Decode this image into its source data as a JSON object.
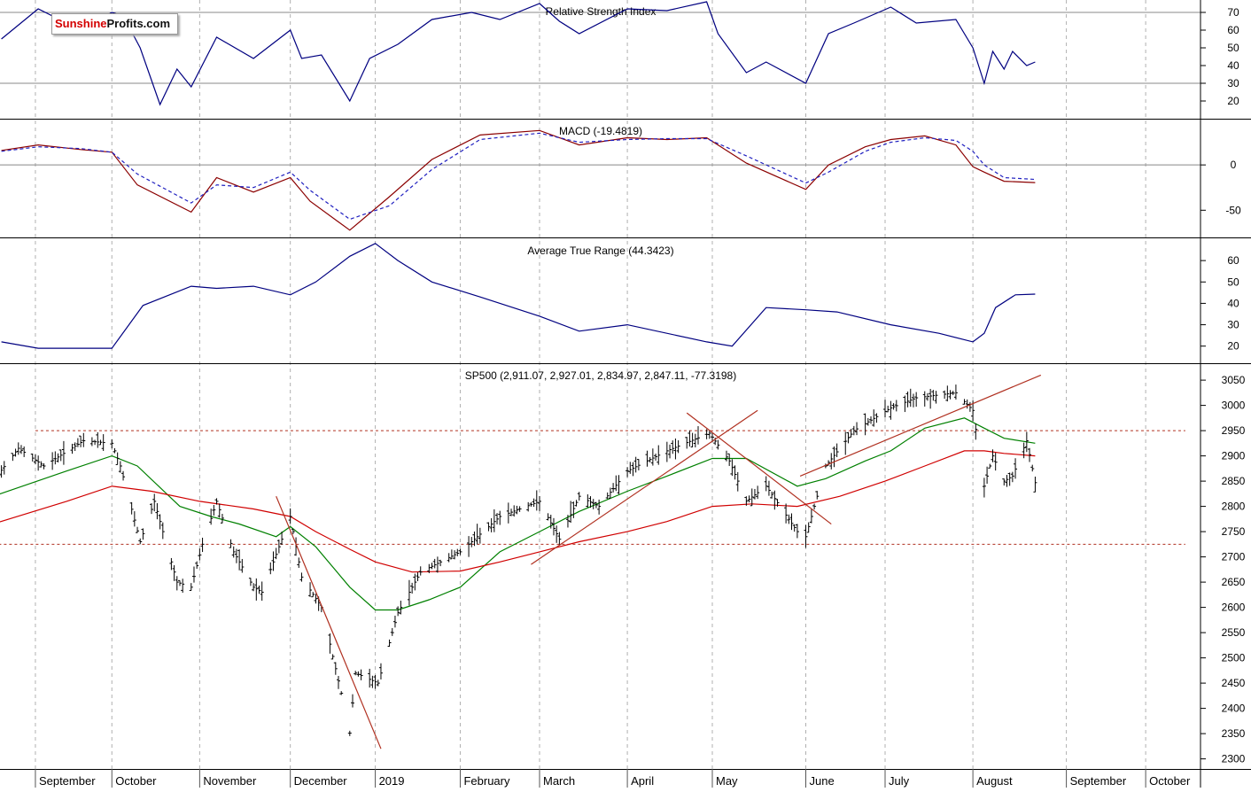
{
  "brand": {
    "part1": "Sunshine",
    "part2": "Profits.com"
  },
  "panels": {
    "rsi": {
      "title": "Relative Strength Index"
    },
    "macd": {
      "title": "MACD (-19.4819)"
    },
    "atr": {
      "title": "Average True Range (44.3423)"
    },
    "price": {
      "title": "SP500 (2,911.07, 2,927.01, 2,834.97, 2,847.11, -77.3198)"
    }
  },
  "chart_data": [
    {
      "type": "line",
      "name_ref": "rsi",
      "ylim": [
        10,
        77
      ],
      "y_ticks": [
        70,
        60,
        50,
        40,
        30,
        20
      ],
      "reference_lines": [
        70,
        30
      ],
      "x": [
        "2018-08-23",
        "2018-09-05",
        "2018-09-20",
        "2018-10-01",
        "2018-10-05",
        "2018-10-11",
        "2018-10-18",
        "2018-10-24",
        "2018-10-29",
        "2018-11-07",
        "2018-11-20",
        "2018-12-03",
        "2018-12-07",
        "2018-12-14",
        "2018-12-24",
        "2018-12-31",
        "2019-01-10",
        "2019-01-22",
        "2019-02-05",
        "2019-02-15",
        "2019-03-01",
        "2019-03-08",
        "2019-03-15",
        "2019-04-01",
        "2019-04-15",
        "2019-04-29",
        "2019-05-03",
        "2019-05-13",
        "2019-05-20",
        "2019-06-03",
        "2019-06-11",
        "2019-06-20",
        "2019-07-03",
        "2019-07-12",
        "2019-07-26",
        "2019-08-01",
        "2019-08-05",
        "2019-08-08",
        "2019-08-12",
        "2019-08-15",
        "2019-08-20",
        "2019-08-23"
      ],
      "values": [
        55,
        72,
        60,
        70,
        68,
        50,
        18,
        38,
        28,
        56,
        44,
        60,
        44,
        46,
        20,
        44,
        52,
        66,
        70,
        66,
        75,
        65,
        58,
        72,
        71,
        76,
        58,
        36,
        42,
        30,
        58,
        64,
        73,
        64,
        66,
        50,
        30,
        48,
        38,
        48,
        40,
        42
      ]
    },
    {
      "type": "line",
      "name_ref": "macd",
      "ylim": [
        -80,
        50
      ],
      "y_ticks": [
        0,
        -50
      ],
      "reference_lines": [
        0
      ],
      "x": [
        "2018-08-23",
        "2018-09-05",
        "2018-09-20",
        "2018-10-01",
        "2018-10-10",
        "2018-10-29",
        "2018-11-07",
        "2018-11-20",
        "2018-12-03",
        "2018-12-10",
        "2018-12-24",
        "2019-01-07",
        "2019-01-22",
        "2019-02-08",
        "2019-03-01",
        "2019-03-15",
        "2019-04-01",
        "2019-04-15",
        "2019-04-29",
        "2019-05-13",
        "2019-06-03",
        "2019-06-11",
        "2019-06-24",
        "2019-07-03",
        "2019-07-15",
        "2019-07-26",
        "2019-08-01",
        "2019-08-05",
        "2019-08-12",
        "2019-08-23"
      ],
      "series": [
        {
          "color": "#8b0000",
          "style": "solid",
          "values": [
            16,
            22,
            17,
            14,
            -22,
            -52,
            -14,
            -30,
            -14,
            -40,
            -72,
            -35,
            6,
            33,
            38,
            22,
            30,
            28,
            30,
            2,
            -27,
            0,
            20,
            28,
            32,
            22,
            -2,
            -8,
            -18,
            -19.5
          ]
        },
        {
          "color": "#2020c0",
          "style": "dashed",
          "values": [
            15,
            20,
            18,
            14,
            -10,
            -42,
            -22,
            -25,
            -8,
            -28,
            -60,
            -45,
            -5,
            28,
            35,
            25,
            28,
            29,
            29,
            10,
            -20,
            -8,
            15,
            25,
            30,
            27,
            15,
            0,
            -14,
            -16
          ]
        }
      ]
    },
    {
      "type": "line",
      "name_ref": "atr",
      "ylim": [
        12,
        70
      ],
      "y_ticks": [
        60,
        50,
        40,
        30,
        20
      ],
      "x": [
        "2018-08-23",
        "2018-09-05",
        "2018-09-20",
        "2018-10-01",
        "2018-10-12",
        "2018-10-29",
        "2018-11-07",
        "2018-11-20",
        "2018-12-03",
        "2018-12-12",
        "2018-12-24",
        "2019-01-02",
        "2019-01-10",
        "2019-01-22",
        "2019-02-08",
        "2019-03-01",
        "2019-03-15",
        "2019-04-01",
        "2019-04-29",
        "2019-05-08",
        "2019-05-20",
        "2019-06-03",
        "2019-06-14",
        "2019-07-03",
        "2019-07-20",
        "2019-08-01",
        "2019-08-05",
        "2019-08-09",
        "2019-08-16",
        "2019-08-23"
      ],
      "values": [
        22,
        19,
        19,
        19,
        39,
        48,
        47,
        48,
        44,
        50,
        62,
        68,
        60,
        50,
        43,
        34,
        27,
        30,
        22,
        20,
        38,
        37,
        36,
        30,
        26,
        22,
        26,
        38,
        44,
        44.3
      ]
    },
    {
      "type": "line",
      "name_ref": "price",
      "ylim": [
        2280,
        3080
      ],
      "y_ticks": [
        3050,
        3000,
        2950,
        2900,
        2850,
        2800,
        2750,
        2700,
        2650,
        2600,
        2550,
        2500,
        2450,
        2400,
        2350,
        2300
      ],
      "x_range": [
        "2018-08-20",
        "2019-11-05"
      ],
      "x_ticks": [
        "September",
        "October",
        "November",
        "December",
        "2019",
        "February",
        "March",
        "April",
        "May",
        "June",
        "July",
        "August",
        "September",
        "October"
      ],
      "x_tick_dates": [
        "2018-09-04",
        "2018-10-01",
        "2018-11-01",
        "2018-12-03",
        "2019-01-02",
        "2019-02-01",
        "2019-03-01",
        "2019-04-01",
        "2019-05-01",
        "2019-06-03",
        "2019-07-01",
        "2019-08-01",
        "2019-09-03",
        "2019-10-01"
      ],
      "price_points": {
        "x": [
          "2018-08-20",
          "2018-08-29",
          "2018-09-07",
          "2018-09-21",
          "2018-10-01",
          "2018-10-04",
          "2018-10-11",
          "2018-10-16",
          "2018-10-24",
          "2018-10-29",
          "2018-11-02",
          "2018-11-07",
          "2018-11-13",
          "2018-11-20",
          "2018-11-23",
          "2018-12-03",
          "2018-12-07",
          "2018-12-14",
          "2018-12-21",
          "2018-12-24",
          "2018-12-26",
          "2019-01-03",
          "2019-01-10",
          "2019-01-18",
          "2019-02-01",
          "2019-02-15",
          "2019-03-01",
          "2019-03-08",
          "2019-03-15",
          "2019-03-22",
          "2019-04-01",
          "2019-04-15",
          "2019-04-30",
          "2019-05-07",
          "2019-05-13",
          "2019-05-20",
          "2019-05-31",
          "2019-06-03",
          "2019-06-10",
          "2019-06-20",
          "2019-07-03",
          "2019-07-12",
          "2019-07-26",
          "2019-08-01",
          "2019-08-05",
          "2019-08-08",
          "2019-08-12",
          "2019-08-15",
          "2019-08-20",
          "2019-08-23"
        ],
        "values": [
          2850,
          2915,
          2880,
          2930,
          2925,
          2880,
          2730,
          2810,
          2650,
          2640,
          2725,
          2810,
          2710,
          2640,
          2630,
          2780,
          2660,
          2600,
          2430,
          2351,
          2470,
          2450,
          2590,
          2670,
          2710,
          2780,
          2810,
          2735,
          2820,
          2800,
          2870,
          2910,
          2945,
          2890,
          2810,
          2840,
          2750,
          2740,
          2880,
          2950,
          2995,
          3015,
          3025,
          2990,
          2840,
          2900,
          2850,
          2860,
          2930,
          2847
        ]
      },
      "series": [
        {
          "color": "#008000",
          "x": [
            "2018-08-20",
            "2018-09-15",
            "2018-10-01",
            "2018-10-10",
            "2018-10-25",
            "2018-11-05",
            "2018-11-15",
            "2018-11-28",
            "2018-12-03",
            "2018-12-12",
            "2018-12-24",
            "2019-01-02",
            "2019-01-10",
            "2019-01-21",
            "2019-02-01",
            "2019-02-15",
            "2019-03-01",
            "2019-03-15",
            "2019-04-01",
            "2019-04-15",
            "2019-05-01",
            "2019-05-13",
            "2019-05-31",
            "2019-06-10",
            "2019-06-24",
            "2019-07-03",
            "2019-07-15",
            "2019-07-29",
            "2019-08-05",
            "2019-08-12",
            "2019-08-23"
          ],
          "values": [
            2820,
            2870,
            2900,
            2880,
            2800,
            2780,
            2765,
            2740,
            2760,
            2720,
            2640,
            2595,
            2595,
            2615,
            2640,
            2710,
            2750,
            2790,
            2830,
            2860,
            2895,
            2895,
            2840,
            2855,
            2890,
            2910,
            2955,
            2975,
            2955,
            2935,
            2925
          ]
        },
        {
          "color": "#d00000",
          "x": [
            "2018-08-20",
            "2018-09-15",
            "2018-10-01",
            "2018-10-15",
            "2018-11-01",
            "2018-11-20",
            "2018-12-03",
            "2018-12-12",
            "2018-12-24",
            "2019-01-02",
            "2019-01-15",
            "2019-02-01",
            "2019-02-15",
            "2019-03-01",
            "2019-03-15",
            "2019-04-01",
            "2019-04-15",
            "2019-05-01",
            "2019-05-15",
            "2019-05-31",
            "2019-06-15",
            "2019-07-01",
            "2019-07-15",
            "2019-07-29",
            "2019-08-05",
            "2019-08-12",
            "2019-08-23"
          ],
          "values": [
            2765,
            2810,
            2840,
            2830,
            2810,
            2795,
            2780,
            2750,
            2715,
            2690,
            2670,
            2672,
            2690,
            2710,
            2730,
            2750,
            2770,
            2800,
            2805,
            2800,
            2820,
            2850,
            2880,
            2910,
            2910,
            2905,
            2900
          ]
        }
      ],
      "annotations": [
        {
          "kind": "horizontal-dashed",
          "value": 2950,
          "from": "2018-09-04",
          "to": "2019-10-15"
        },
        {
          "kind": "horizontal-dashed",
          "value": 2725,
          "from": "2018-08-22",
          "to": "2019-10-15"
        },
        {
          "kind": "trendline",
          "x": [
            "2018-11-28",
            "2019-01-04"
          ],
          "values": [
            2820,
            2320
          ]
        },
        {
          "kind": "trendline",
          "x": [
            "2019-02-26",
            "2019-05-17"
          ],
          "values": [
            2685,
            2990
          ]
        },
        {
          "kind": "trendline",
          "x": [
            "2019-04-22",
            "2019-06-12"
          ],
          "values": [
            2985,
            2765
          ]
        },
        {
          "kind": "trendline",
          "x": [
            "2019-06-01",
            "2019-08-25"
          ],
          "values": [
            2860,
            3060
          ]
        }
      ]
    }
  ]
}
